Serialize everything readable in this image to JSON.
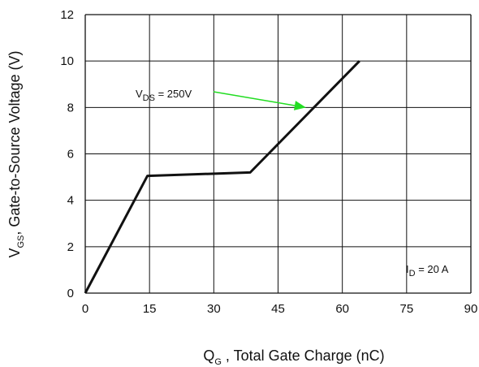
{
  "chart_data": {
    "type": "line",
    "xlabel_main": "Q",
    "xlabel_sub": "G",
    "xlabel_rest": " , Total Gate Charge (nC)",
    "ylabel_main": "V",
    "ylabel_sub": "GS",
    "ylabel_rest": ", Gate-to-Source Voltage (V)",
    "xlim": [
      0,
      90
    ],
    "ylim": [
      0,
      12
    ],
    "x_ticks": [
      0,
      15,
      30,
      45,
      60,
      75,
      90
    ],
    "y_ticks": [
      0,
      2,
      4,
      6,
      8,
      10,
      12
    ],
    "grid": true,
    "series": [
      {
        "x": [
          0,
          14.5,
          38.5,
          64
        ],
        "y": [
          0,
          5.05,
          5.2,
          10
        ]
      }
    ],
    "annotations": [
      {
        "main": "V",
        "sub": "DS",
        "rest": " = 250V",
        "target_x": 51.5,
        "target_y": 8.0,
        "arrow_color": "#22dd22"
      },
      {
        "main": "I",
        "sub": "D",
        "rest": " = 20 A"
      }
    ],
    "colors": {
      "line": "#111111",
      "grid": "#111111",
      "arrow": "#22dd22"
    }
  }
}
